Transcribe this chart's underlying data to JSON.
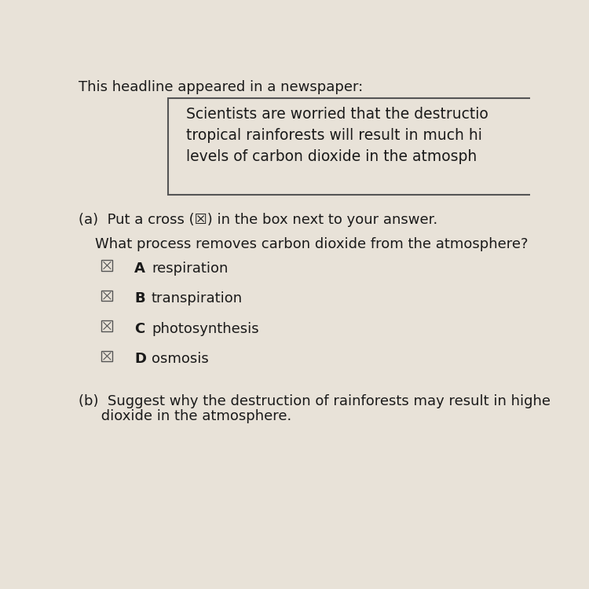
{
  "bg_color": "#e8e2d8",
  "text_color": "#1a1a1a",
  "header_text": "This headline appeared in a newspaper:",
  "box_lines": [
    "Scientists are worried that the destructio",
    "tropical rainforests will result in much hi",
    "levels of carbon dioxide in the atmosph"
  ],
  "part_a_instruction": "(a)  Put a cross (☒) in the box next to your answer.",
  "question": "What process removes carbon dioxide from the atmosphere?",
  "options": [
    {
      "label": "A",
      "text": "respiration"
    },
    {
      "label": "B",
      "text": "transpiration"
    },
    {
      "label": "C",
      "text": "photosynthesis"
    },
    {
      "label": "D",
      "text": "osmosis"
    }
  ],
  "part_b_line1": "(b)  Suggest why the destruction of rainforests may result in highe",
  "part_b_line2": "     dioxide in the atmosphere."
}
